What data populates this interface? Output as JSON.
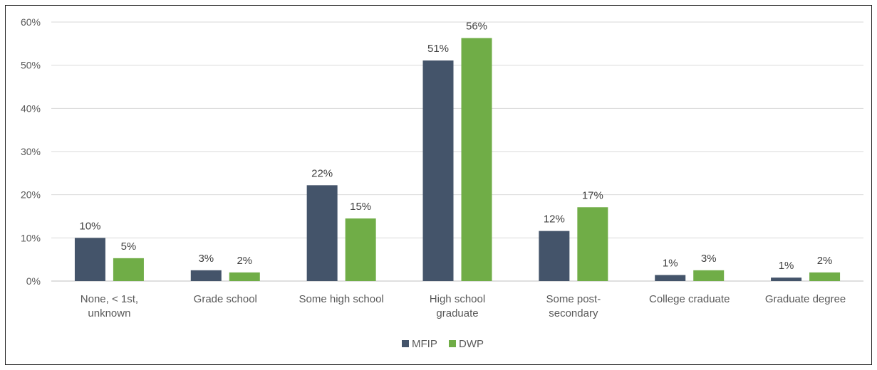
{
  "chart_data": {
    "type": "bar",
    "title": "",
    "xlabel": "",
    "ylabel": "",
    "categories": [
      [
        "None, < 1st,",
        "unknown"
      ],
      [
        "Grade school"
      ],
      [
        "Some high school"
      ],
      [
        "High school",
        "graduate"
      ],
      [
        "Some post-",
        "secondary"
      ],
      [
        "College craduate"
      ],
      [
        "Graduate degree"
      ]
    ],
    "series": [
      {
        "name": "MFIP",
        "color": "#44546A",
        "values": [
          10,
          2.5,
          22.2,
          51.1,
          11.6,
          1.4,
          0.8
        ],
        "labels": [
          "10%",
          "3%",
          "22%",
          "51%",
          "12%",
          "1%",
          "1%"
        ]
      },
      {
        "name": "DWP",
        "color": "#70AD47",
        "values": [
          5.3,
          2.0,
          14.5,
          56.3,
          17.1,
          2.5,
          2.0
        ],
        "labels": [
          "5%",
          "2%",
          "15%",
          "56%",
          "17%",
          "3%",
          "2%"
        ]
      }
    ],
    "ylim": [
      0,
      60
    ],
    "yticks": [
      "0%",
      "10%",
      "20%",
      "30%",
      "40%",
      "50%",
      "60%"
    ],
    "grid": true,
    "legend_position": "bottom"
  }
}
